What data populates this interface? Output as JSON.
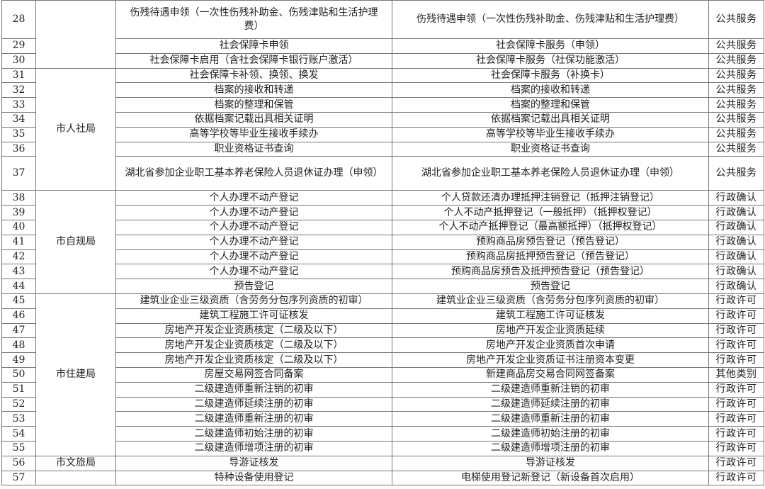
{
  "groups": [
    {
      "department": "",
      "rows": [
        {
          "no": "28",
          "item": "伤残待遇申领（一次性伤残补助金、伤残津贴和生活护理费）",
          "sub_item": "伤残待遇申领（一次性伤残补助金、伤残津贴和生活护理费）",
          "category": "公共服务"
        },
        {
          "no": "29",
          "item": "社会保障卡申领",
          "sub_item": "社会保障卡服务（申领）",
          "category": "公共服务"
        },
        {
          "no": "30",
          "item": "社会保障卡启用（含社会保障卡银行账户激活）",
          "sub_item": "社会保障卡服务（社保功能激活）",
          "category": "公共服务"
        }
      ]
    },
    {
      "department": "市人社局",
      "rows": [
        {
          "no": "31",
          "item": "社会保障卡补领、换领、换发",
          "sub_item": "社会保障卡服务（补换卡）",
          "category": "公共服务"
        },
        {
          "no": "32",
          "item": "档案的接收和转递",
          "sub_item": "档案的接收和转递",
          "category": "公共服务"
        },
        {
          "no": "33",
          "item": "档案的整理和保管",
          "sub_item": "档案的整理和保管",
          "category": "公共服务"
        },
        {
          "no": "34",
          "item": "依据档案记载出具相关证明",
          "sub_item": "依据档案记载出具相关证明",
          "category": "公共服务"
        },
        {
          "no": "35",
          "item": "高等学校等毕业生接收手续办",
          "sub_item": "高等学校等毕业生接收手续办",
          "category": "公共服务"
        },
        {
          "no": "36",
          "item": "职业资格证书查询",
          "sub_item": "职业资格证书查询",
          "category": "公共服务"
        },
        {
          "no": "37",
          "item": "湖北省参加企业职工基本养老保险人员退休证办理（申领）",
          "sub_item": "湖北省参加企业职工基本养老保险人员退休证办理（申领）",
          "category": "公共服务"
        }
      ]
    },
    {
      "department": "市自规局",
      "rows": [
        {
          "no": "38",
          "item": "个人办理不动产登记",
          "sub_item": "个人贷款还清办理抵押注销登记（抵押注销登记）",
          "category": "行政确认"
        },
        {
          "no": "39",
          "item": "个人办理不动产登记",
          "sub_item": "个人不动产抵押登记（一般抵押）（抵押权登记）",
          "category": "行政确认"
        },
        {
          "no": "40",
          "item": "个人办理不动产登记",
          "sub_item": "个人不动产抵押登记（最高额抵押）（抵押权登记）",
          "category": "行政确认"
        },
        {
          "no": "41",
          "item": "个人办理不动产登记",
          "sub_item": "预购商品房预告登记（预告登记）",
          "category": "行政确认"
        },
        {
          "no": "42",
          "item": "个人办理不动产登记",
          "sub_item": "预购商品房抵押预告登记（预告登记）",
          "category": "行政确认"
        },
        {
          "no": "43",
          "item": "个人办理不动产登记",
          "sub_item": "预购商品房预告及抵押预告登记（预告登记）",
          "category": "行政确认"
        },
        {
          "no": "44",
          "item": "预告登记",
          "sub_item": "预告登记",
          "category": "行政确认"
        }
      ]
    },
    {
      "department": "市住建局",
      "rows": [
        {
          "no": "45",
          "item": "建筑业企业三级资质（含劳务分包序列资质的初审）",
          "sub_item": "建筑业企业三级资质（含劳务分包序列资质的初审）",
          "category": "行政许可"
        },
        {
          "no": "46",
          "item": "建筑工程施工许可证核发",
          "sub_item": "建筑工程施工许可证核发",
          "category": "行政许可"
        },
        {
          "no": "47",
          "item": "房地产开发企业资质核定（二级及以下）",
          "sub_item": "房地产开发企业资质延续",
          "category": "行政许可"
        },
        {
          "no": "48",
          "item": "房地产开发企业资质核定（二级及以下）",
          "sub_item": "房地产开发企业资质首次申请",
          "category": "行政许可"
        },
        {
          "no": "49",
          "item": "房地产开发企业资质核定（二级及以下）",
          "sub_item": "房地产开发企业资质证书注册资本变更",
          "category": "行政许可"
        },
        {
          "no": "50",
          "item": "房屋交易网签合同备案",
          "sub_item": "新建商品房交易合同网签备案",
          "category": "其他类别"
        },
        {
          "no": "51",
          "item": "二级建造师重新注销的初审",
          "sub_item": "二级建造师重新注销的初审",
          "category": "行政许可"
        },
        {
          "no": "52",
          "item": "二级建造师延续注册的初审",
          "sub_item": "二级建造师延续注册的初审",
          "category": "行政许可"
        },
        {
          "no": "53",
          "item": "二级建造师重新注册的初审",
          "sub_item": "二级建造师重新注册的初审",
          "category": "行政许可"
        },
        {
          "no": "54",
          "item": "二级建造师初始注册的初审",
          "sub_item": "二级建造师初始注册的初审",
          "category": "行政许可"
        },
        {
          "no": "55",
          "item": "二级建造师增项注册的初审",
          "sub_item": "二级建造师增项注册的初审",
          "category": "行政许可"
        }
      ]
    },
    {
      "department": "市文旅局",
      "rows": [
        {
          "no": "56",
          "item": "导游证核发",
          "sub_item": "导游证核发",
          "category": "行政许可"
        }
      ]
    },
    {
      "department": "",
      "rows": [
        {
          "no": "57",
          "item": "特种设备使用登记",
          "sub_item": "电梯使用登记新登记（新设备首次启用）",
          "category": "行政许可"
        }
      ]
    }
  ]
}
